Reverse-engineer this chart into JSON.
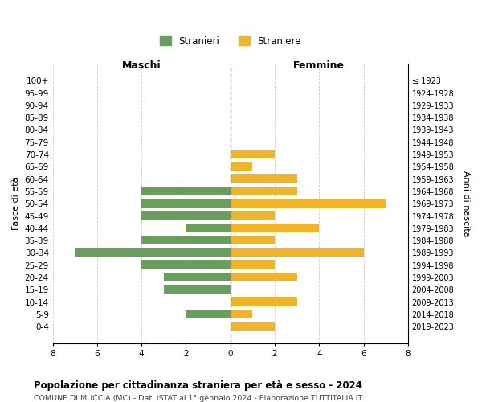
{
  "age_groups": [
    "100+",
    "95-99",
    "90-94",
    "85-89",
    "80-84",
    "75-79",
    "70-74",
    "65-69",
    "60-64",
    "55-59",
    "50-54",
    "45-49",
    "40-44",
    "35-39",
    "30-34",
    "25-29",
    "20-24",
    "15-19",
    "10-14",
    "5-9",
    "0-4"
  ],
  "birth_years": [
    "≤ 1923",
    "1924-1928",
    "1929-1933",
    "1934-1938",
    "1939-1943",
    "1944-1948",
    "1949-1953",
    "1954-1958",
    "1959-1963",
    "1964-1968",
    "1969-1973",
    "1974-1978",
    "1979-1983",
    "1984-1988",
    "1989-1993",
    "1994-1998",
    "1999-2003",
    "2004-2008",
    "2009-2013",
    "2014-2018",
    "2019-2023"
  ],
  "maschi": [
    0,
    0,
    0,
    0,
    0,
    0,
    0,
    0,
    0,
    4,
    4,
    4,
    2,
    4,
    7,
    4,
    3,
    3,
    0,
    2,
    0
  ],
  "femmine": [
    0,
    0,
    0,
    0,
    0,
    0,
    2,
    1,
    3,
    3,
    7,
    2,
    4,
    2,
    6,
    2,
    3,
    0,
    3,
    1,
    2
  ],
  "color_maschi": "#6a9e5e",
  "color_femmine": "#f0b429",
  "title": "Popolazione per cittadinanza straniera per età e sesso - 2024",
  "subtitle": "COMUNE DI MUCCIA (MC) - Dati ISTAT al 1° gennaio 2024 - Elaborazione TUTTITALIA.IT",
  "xlabel_left": "Maschi",
  "xlabel_right": "Femmine",
  "ylabel_left": "Fasce di età",
  "ylabel_right": "Anni di nascita",
  "legend_maschi": "Stranieri",
  "legend_femmine": "Straniere",
  "xlim": 8,
  "background_color": "#ffffff",
  "grid_color": "#cccccc"
}
